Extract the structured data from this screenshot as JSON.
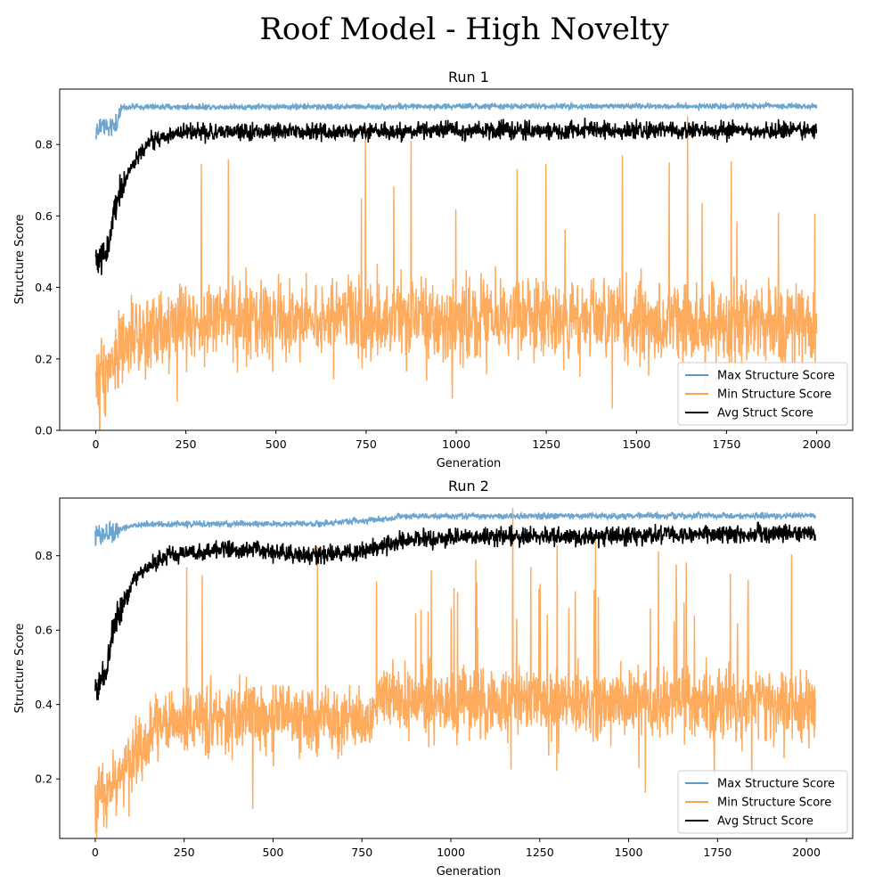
{
  "suptitle": "Roof Model - High Novelty",
  "colors": {
    "max": "#5b9bcb",
    "min": "#ffa24d",
    "avg": "#000000"
  },
  "chart_data": [
    {
      "type": "line",
      "title": "Run 1",
      "xlabel": "Generation",
      "ylabel": "Structure Score",
      "xlim": [
        -100,
        2100
      ],
      "ylim": [
        0.0,
        0.955
      ],
      "xticks": [
        0,
        250,
        500,
        750,
        1000,
        1250,
        1500,
        1750,
        2000
      ],
      "yticks": [
        0.0,
        0.2,
        0.4,
        0.6,
        0.8
      ],
      "yticks_labels": [
        "0.0",
        "0.2",
        "0.4",
        "0.6",
        "0.8"
      ],
      "legend": "lower-right",
      "x_max": 2000,
      "series": [
        {
          "name": "Max Structure Score",
          "key": "max",
          "anchors": [
            [
              0,
              0.83
            ],
            [
              20,
              0.86
            ],
            [
              40,
              0.84
            ],
            [
              60,
              0.87
            ],
            [
              70,
              0.905
            ],
            [
              2000,
              0.908
            ]
          ],
          "noise": 0.004
        },
        {
          "name": "Min Structure Score",
          "key": "min",
          "anchors": [
            [
              0,
              0.14
            ],
            [
              50,
              0.2
            ],
            [
              100,
              0.25
            ],
            [
              200,
              0.3
            ],
            [
              400,
              0.31
            ],
            [
              1000,
              0.31
            ],
            [
              1500,
              0.31
            ],
            [
              2000,
              0.3
            ]
          ],
          "noise": 0.055
        },
        {
          "name": "Avg Struct Score",
          "key": "avg",
          "anchors": [
            [
              0,
              0.47
            ],
            [
              30,
              0.5
            ],
            [
              60,
              0.65
            ],
            [
              100,
              0.74
            ],
            [
              150,
              0.81
            ],
            [
              250,
              0.835
            ],
            [
              600,
              0.835
            ],
            [
              1000,
              0.84
            ],
            [
              2000,
              0.84
            ]
          ],
          "noise": 0.012
        }
      ]
    },
    {
      "type": "line",
      "title": "Run 2",
      "xlabel": "Generation",
      "ylabel": "Structure Score",
      "xlim": [
        -100,
        2130
      ],
      "ylim": [
        0.04,
        0.955
      ],
      "xticks": [
        0,
        250,
        500,
        750,
        1000,
        1250,
        1500,
        1750,
        2000
      ],
      "yticks": [
        0.2,
        0.4,
        0.6,
        0.8
      ],
      "yticks_labels": [
        "0.2",
        "0.4",
        "0.6",
        "0.8"
      ],
      "legend": "lower-right",
      "x_max": 2025,
      "series": [
        {
          "name": "Max Structure Score",
          "key": "max",
          "anchors": [
            [
              0,
              0.85
            ],
            [
              40,
              0.86
            ],
            [
              80,
              0.875
            ],
            [
              140,
              0.885
            ],
            [
              650,
              0.886
            ],
            [
              700,
              0.892
            ],
            [
              840,
              0.9
            ],
            [
              850,
              0.907
            ],
            [
              2025,
              0.907
            ]
          ],
          "noise": 0.004
        },
        {
          "name": "Min Structure Score",
          "key": "min",
          "anchors": [
            [
              0,
              0.14
            ],
            [
              60,
              0.2
            ],
            [
              140,
              0.3
            ],
            [
              180,
              0.35
            ],
            [
              400,
              0.37
            ],
            [
              770,
              0.36
            ],
            [
              800,
              0.42
            ],
            [
              1100,
              0.4
            ],
            [
              1300,
              0.41
            ],
            [
              1700,
              0.41
            ],
            [
              2025,
              0.39
            ]
          ],
          "noise": 0.045
        },
        {
          "name": "Avg Struct Score",
          "key": "avg",
          "anchors": [
            [
              0,
              0.44
            ],
            [
              30,
              0.5
            ],
            [
              60,
              0.64
            ],
            [
              120,
              0.75
            ],
            [
              200,
              0.8
            ],
            [
              400,
              0.82
            ],
            [
              600,
              0.8
            ],
            [
              750,
              0.81
            ],
            [
              850,
              0.84
            ],
            [
              1000,
              0.85
            ],
            [
              2025,
              0.86
            ]
          ],
          "noise": 0.012
        }
      ]
    }
  ]
}
